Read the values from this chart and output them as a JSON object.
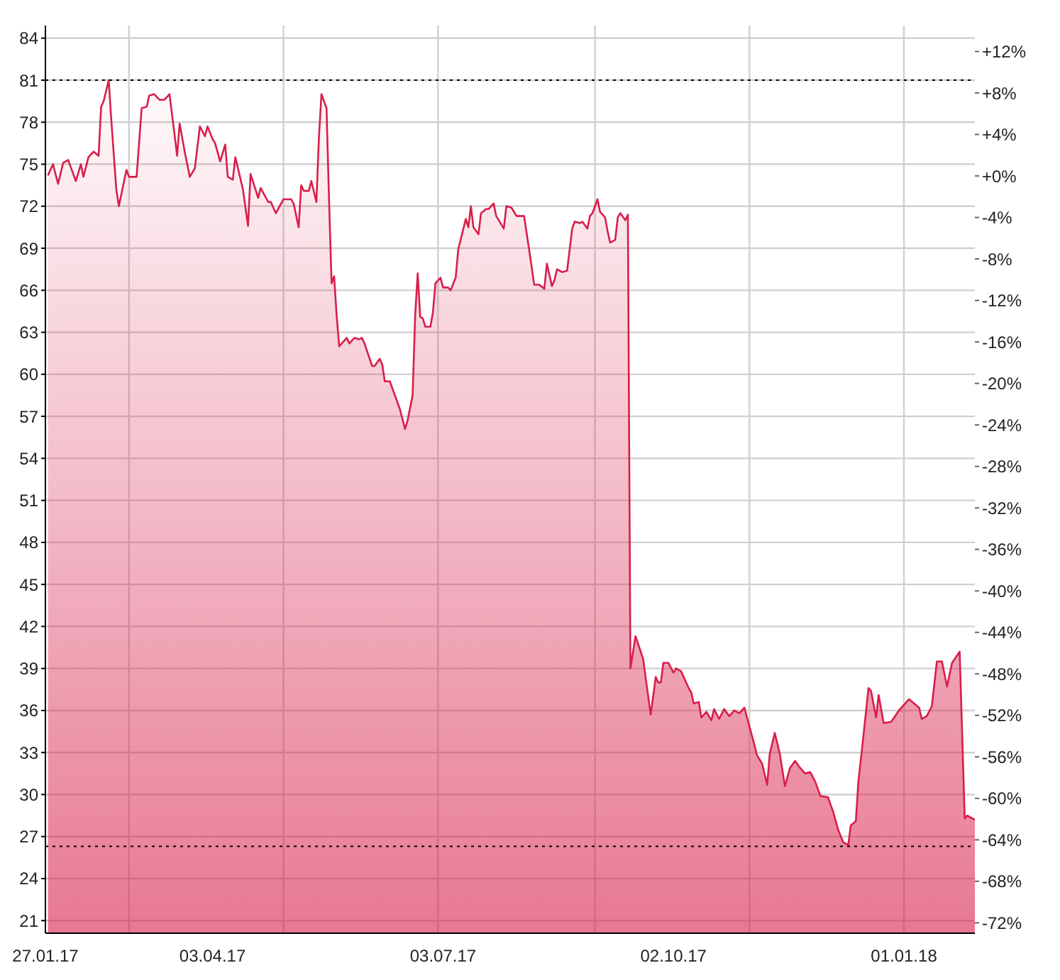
{
  "chart_data": {
    "type": "area",
    "x": [
      "2017-01-28",
      "2017-01-30",
      "2017-02-01",
      "2017-02-03",
      "2017-02-05",
      "2017-02-08",
      "2017-02-10",
      "2017-02-11",
      "2017-02-13",
      "2017-02-15",
      "2017-02-17",
      "2017-02-18",
      "2017-02-19",
      "2017-02-21",
      "2017-02-22",
      "2017-02-24",
      "2017-02-25",
      "2017-02-28",
      "2017-03-01",
      "2017-03-04",
      "2017-03-06",
      "2017-03-08",
      "2017-03-09",
      "2017-03-11",
      "2017-03-13",
      "2017-03-15",
      "2017-03-17",
      "2017-03-19",
      "2017-03-20",
      "2017-03-21",
      "2017-03-23",
      "2017-03-25",
      "2017-03-27",
      "2017-03-29",
      "2017-03-31",
      "2017-04-01",
      "2017-04-03",
      "2017-04-04",
      "2017-04-06",
      "2017-04-08",
      "2017-04-09",
      "2017-04-11",
      "2017-04-12",
      "2017-04-15",
      "2017-04-17",
      "2017-04-18",
      "2017-04-21",
      "2017-04-22",
      "2017-04-25",
      "2017-04-26",
      "2017-04-28",
      "2017-05-01",
      "2017-05-04",
      "2017-05-05",
      "2017-05-07",
      "2017-05-08",
      "2017-05-09",
      "2017-05-11",
      "2017-05-12",
      "2017-05-14",
      "2017-05-15",
      "2017-05-16",
      "2017-05-18",
      "2017-05-19",
      "2017-05-20",
      "2017-05-21",
      "2017-05-22",
      "2017-05-23",
      "2017-05-26",
      "2017-05-27",
      "2017-05-29",
      "2017-05-31",
      "2017-06-01",
      "2017-06-02",
      "2017-06-05",
      "2017-06-06",
      "2017-06-08",
      "2017-06-09",
      "2017-06-10",
      "2017-06-12",
      "2017-06-16",
      "2017-06-18",
      "2017-06-19",
      "2017-06-21",
      "2017-06-22",
      "2017-06-23",
      "2017-06-24",
      "2017-06-25",
      "2017-06-26",
      "2017-06-28",
      "2017-06-29",
      "2017-06-30",
      "2017-07-02",
      "2017-07-03",
      "2017-07-05",
      "2017-07-06",
      "2017-07-08",
      "2017-07-09",
      "2017-07-12",
      "2017-07-13",
      "2017-07-14",
      "2017-07-15",
      "2017-07-17",
      "2017-07-18",
      "2017-07-20",
      "2017-07-21",
      "2017-07-23",
      "2017-07-24",
      "2017-07-27",
      "2017-07-28",
      "2017-07-30",
      "2017-08-01",
      "2017-08-04",
      "2017-08-06",
      "2017-08-08",
      "2017-08-10",
      "2017-08-12",
      "2017-08-13",
      "2017-08-15",
      "2017-08-16",
      "2017-08-17",
      "2017-08-19",
      "2017-08-21",
      "2017-08-23",
      "2017-08-24",
      "2017-08-26",
      "2017-08-27",
      "2017-08-29",
      "2017-08-30",
      "2017-08-31",
      "2017-09-02",
      "2017-09-03",
      "2017-09-05",
      "2017-09-06",
      "2017-09-07",
      "2017-09-09",
      "2017-09-10",
      "2017-09-11",
      "2017-09-13",
      "2017-09-14",
      "2017-09-15",
      "2017-09-17",
      "2017-09-20",
      "2017-09-23",
      "2017-09-25",
      "2017-09-26",
      "2017-09-27",
      "2017-09-28",
      "2017-09-30",
      "2017-10-02",
      "2017-10-03",
      "2017-10-05",
      "2017-10-08",
      "2017-10-09",
      "2017-10-10",
      "2017-10-12",
      "2017-10-13",
      "2017-10-15",
      "2017-10-17",
      "2017-10-18",
      "2017-10-20",
      "2017-10-22",
      "2017-10-24",
      "2017-10-26",
      "2017-10-28",
      "2017-10-30",
      "2017-11-02",
      "2017-11-04",
      "2017-11-06",
      "2017-11-08",
      "2017-11-09",
      "2017-11-11",
      "2017-11-13",
      "2017-11-15",
      "2017-11-17",
      "2017-11-19",
      "2017-11-21",
      "2017-11-23",
      "2017-11-25",
      "2017-11-27",
      "2017-11-29",
      "2017-12-02",
      "2017-12-04",
      "2017-12-06",
      "2017-12-08",
      "2017-12-10",
      "2017-12-11",
      "2017-12-13",
      "2017-12-14",
      "2017-12-16",
      "2017-12-18",
      "2017-12-19",
      "2017-12-21",
      "2017-12-22",
      "2017-12-24",
      "2017-12-27",
      "2017-12-30",
      "2018-01-03",
      "2018-01-07",
      "2018-01-08",
      "2018-01-10",
      "2018-01-12",
      "2018-01-14",
      "2018-01-16",
      "2018-01-18",
      "2018-01-20",
      "2018-01-23",
      "2018-01-25",
      "2018-01-26",
      "2018-01-29"
    ],
    "series": [
      {
        "color": "#d81e4a",
        "values": [
          74.2,
          75.0,
          73.6,
          75.1,
          75.3,
          73.8,
          75.0,
          74.1,
          75.5,
          75.9,
          75.6,
          79.1,
          79.5,
          81.0,
          78.2,
          73.2,
          72.0,
          74.6,
          74.1,
          74.1,
          79.0,
          79.1,
          79.9,
          80.0,
          79.6,
          79.6,
          80.0,
          77.1,
          75.6,
          77.9,
          75.9,
          74.1,
          74.7,
          77.7,
          77.0,
          77.7,
          76.8,
          76.5,
          75.2,
          76.4,
          74.1,
          73.9,
          75.5,
          73.2,
          70.6,
          74.3,
          72.6,
          73.3,
          72.3,
          72.3,
          71.5,
          72.5,
          72.5,
          72.2,
          70.5,
          73.5,
          73.1,
          73.1,
          73.8,
          72.3,
          76.9,
          80.0,
          79.0,
          72.4,
          66.5,
          67.0,
          64.2,
          62.0,
          62.6,
          62.2,
          62.6,
          62.5,
          62.6,
          62.2,
          60.6,
          60.6,
          61.1,
          60.7,
          59.5,
          59.5,
          57.5,
          56.1,
          56.7,
          58.5,
          64.2,
          67.2,
          64.1,
          64.0,
          63.4,
          63.4,
          64.4,
          66.5,
          66.9,
          66.2,
          66.2,
          66.0,
          66.9,
          68.9,
          71.1,
          70.5,
          72.0,
          70.5,
          70.0,
          71.5,
          71.8,
          71.8,
          72.2,
          71.3,
          70.4,
          72.0,
          71.9,
          71.3,
          71.3,
          68.9,
          66.4,
          66.4,
          66.1,
          67.9,
          66.3,
          66.7,
          67.5,
          67.3,
          67.4,
          70.4,
          70.9,
          70.8,
          70.9,
          70.4,
          71.3,
          71.5,
          72.5,
          71.6,
          71.2,
          70.2,
          69.4,
          69.6,
          71.2,
          71.5,
          71.0,
          71.4,
          39.0,
          41.3,
          39.7,
          35.7,
          38.4,
          38.0,
          38.0,
          39.4,
          39.4,
          38.7,
          39.0,
          38.8,
          37.6,
          37.3,
          36.5,
          36.6,
          35.5,
          35.9,
          35.3,
          36.1,
          35.4,
          36.1,
          35.6,
          36.0,
          35.8,
          36.2,
          34.2,
          32.8,
          32.2,
          30.7,
          32.9,
          34.4,
          32.9,
          30.6,
          31.9,
          32.4,
          31.9,
          31.5,
          31.6,
          30.9,
          29.9,
          29.8,
          28.8,
          27.5,
          26.6,
          26.4,
          27.8,
          28.1,
          30.9,
          34.2,
          37.6,
          37.4,
          35.5,
          37.1,
          35.1,
          35.2,
          36.0,
          36.8,
          36.2,
          35.4,
          35.6,
          36.3,
          39.5,
          39.5,
          37.7,
          39.4,
          40.2,
          28.3,
          28.5,
          28.2
        ]
      }
    ],
    "xlim": [
      "2017-01-27",
      "2018-01-29"
    ],
    "xticks": [
      {
        "value": "2017-01-27",
        "label": "27.01.17"
      },
      {
        "value": "2017-03-01",
        "label": null
      },
      {
        "value": "2017-04-03",
        "label": "03.04.17"
      },
      {
        "value": "2017-05-01",
        "label": null
      },
      {
        "value": "2017-07-01",
        "label": null
      },
      {
        "value": "2017-07-03",
        "label": "03.07.17"
      },
      {
        "value": "2017-09-01",
        "label": null
      },
      {
        "value": "2017-10-02",
        "label": "02.10.17"
      },
      {
        "value": "2017-11-01",
        "label": null
      },
      {
        "value": "2018-01-01",
        "label": null
      },
      {
        "value": "2018-01-01",
        "label": "01.01.18"
      }
    ],
    "ylim": [
      20.1,
      84.9
    ],
    "yticks": [
      21,
      24,
      27,
      30,
      33,
      36,
      39,
      42,
      45,
      48,
      51,
      54,
      57,
      60,
      63,
      66,
      69,
      72,
      75,
      78,
      81,
      84
    ],
    "y2lim": [
      -73.0,
      14.5
    ],
    "y2ticks": [
      {
        "value": 12,
        "label": "+12%"
      },
      {
        "value": 8,
        "label": "+8%"
      },
      {
        "value": 4,
        "label": "+4%"
      },
      {
        "value": 0,
        "label": "+0%"
      },
      {
        "value": -4,
        "label": "-4%"
      },
      {
        "value": -8,
        "label": "-8%"
      },
      {
        "value": -12,
        "label": "-12%"
      },
      {
        "value": -16,
        "label": "-16%"
      },
      {
        "value": -20,
        "label": "-20%"
      },
      {
        "value": -24,
        "label": "-24%"
      },
      {
        "value": -28,
        "label": "-28%"
      },
      {
        "value": -32,
        "label": "-32%"
      },
      {
        "value": -36,
        "label": "-36%"
      },
      {
        "value": -40,
        "label": "-40%"
      },
      {
        "value": -44,
        "label": "-44%"
      },
      {
        "value": -48,
        "label": "-48%"
      },
      {
        "value": -52,
        "label": "-52%"
      },
      {
        "value": -56,
        "label": "-56%"
      },
      {
        "value": -60,
        "label": "-60%"
      },
      {
        "value": -64,
        "label": "-64%"
      },
      {
        "value": -68,
        "label": "-68%"
      },
      {
        "value": -72,
        "label": "-72%"
      }
    ],
    "ref_lines": [
      {
        "axis": "y",
        "value": 81,
        "color": "#000000",
        "line_style": "dotted"
      },
      {
        "axis": "y",
        "value": 26.3,
        "color": "#000000",
        "line_style": "dotted"
      }
    ],
    "grid": true
  }
}
